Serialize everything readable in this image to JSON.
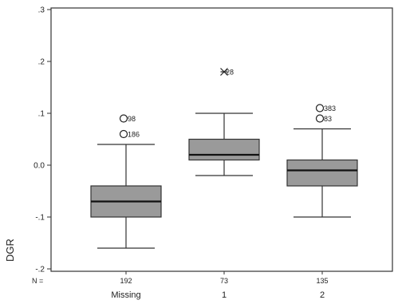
{
  "chart_data": {
    "type": "boxplot",
    "ylabel": "DGR",
    "ylim": [
      -0.2,
      0.3
    ],
    "yticks": [
      {
        "value": 0.3,
        "label": ".3"
      },
      {
        "value": 0.2,
        "label": ".2"
      },
      {
        "value": 0.1,
        "label": ".1"
      },
      {
        "value": 0.0,
        "label": "0.0"
      },
      {
        "value": -0.1,
        "label": "-.1"
      },
      {
        "value": -0.2,
        "label": "-.2"
      }
    ],
    "n_prefix": "N =",
    "grid": false,
    "box_fill": "#9a9a9a",
    "categories": [
      "Missing",
      "1",
      "2"
    ],
    "boxes": [
      {
        "category": "Missing",
        "n": "192",
        "min": -0.16,
        "q1": -0.1,
        "median": -0.07,
        "q3": -0.04,
        "max": 0.04,
        "outliers": [
          {
            "value": 0.09,
            "label": "98",
            "marker": "circle"
          },
          {
            "value": 0.06,
            "label": "186",
            "marker": "circle"
          }
        ]
      },
      {
        "category": "1",
        "n": "73",
        "min": -0.02,
        "q1": 0.01,
        "median": 0.02,
        "q3": 0.05,
        "max": 0.1,
        "outliers": [
          {
            "value": 0.18,
            "label": "28",
            "marker": "star"
          }
        ]
      },
      {
        "category": "2",
        "n": "135",
        "min": -0.1,
        "q1": -0.04,
        "median": -0.01,
        "q3": 0.01,
        "max": 0.07,
        "outliers": [
          {
            "value": 0.11,
            "label": "383",
            "marker": "circle"
          },
          {
            "value": 0.09,
            "label": "83",
            "marker": "circle"
          }
        ]
      }
    ]
  }
}
